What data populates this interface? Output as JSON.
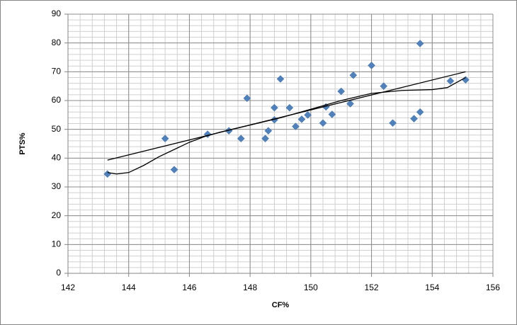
{
  "chart_data": {
    "type": "scatter",
    "xlabel": "CF%",
    "ylabel": "PTS%",
    "xlim": [
      142,
      156
    ],
    "xticks": [
      142,
      144,
      146,
      148,
      150,
      152,
      154,
      156
    ],
    "ylim": [
      0,
      90
    ],
    "yticks": [
      0,
      10,
      20,
      30,
      40,
      50,
      60,
      70,
      80,
      90
    ],
    "grid": true,
    "x_minor_step": 0.4,
    "y_minor_step": 2,
    "series": [
      {
        "type": "scatter",
        "color": "#4f81bd",
        "x": [
          143.3,
          145.2,
          145.5,
          146.6,
          147.3,
          147.7,
          147.9,
          148.5,
          148.6,
          148.8,
          148.8,
          149.0,
          149.3,
          149.5,
          149.7,
          149.9,
          150.4,
          150.5,
          150.7,
          151.0,
          151.3,
          151.4,
          152.0,
          152.4,
          152.7,
          153.4,
          153.6,
          153.6,
          154.6,
          155.1
        ],
        "values": [
          34.5,
          46.8,
          36,
          48.3,
          49.5,
          46.8,
          60.8,
          46.8,
          49.5,
          57.5,
          53.3,
          67.5,
          57.5,
          51,
          53.5,
          55,
          52.2,
          57.8,
          55.2,
          63.2,
          58.9,
          68.8,
          72.2,
          65,
          52.2,
          53.7,
          56,
          79.8,
          66.8,
          67.2
        ]
      },
      {
        "type": "line",
        "color": "#000000",
        "x": [
          143.3,
          155.1
        ],
        "values": [
          39.3,
          70
        ]
      },
      {
        "type": "line",
        "color": "#000000",
        "x": [
          143.3,
          143.6,
          144,
          144.5,
          145,
          145.5,
          146,
          146.5,
          147,
          148,
          149,
          150,
          151,
          152,
          153,
          154,
          154.5,
          155.1
        ],
        "values": [
          35,
          34.5,
          35,
          37.5,
          40.5,
          43,
          45.5,
          47.5,
          49,
          51.5,
          54,
          57,
          60,
          62.5,
          63.5,
          63.8,
          64.5,
          68
        ]
      }
    ]
  }
}
